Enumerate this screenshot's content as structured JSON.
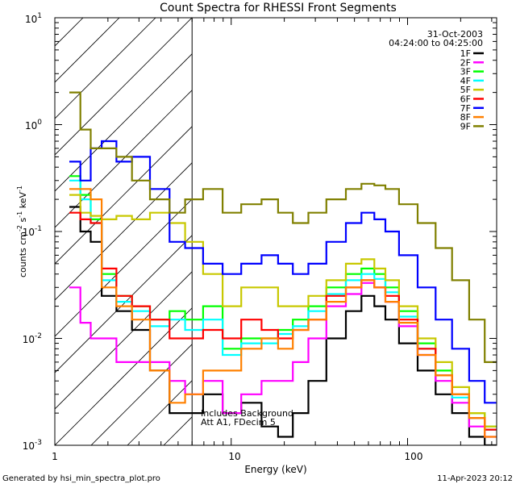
{
  "chart_data": {
    "type": "line",
    "title": "Count Spectra for RHESSI Front Segments",
    "xlabel": "Energy (keV)",
    "ylabel_base": "counts cm",
    "ylabel_sup1": "-2",
    "ylabel_mid": " s",
    "ylabel_sup2": "-1",
    "ylabel_end": " keV",
    "ylabel_sup3": "-1",
    "xscale": "log",
    "yscale": "log",
    "xlim": [
      1,
      320
    ],
    "ylim": [
      0.001,
      10
    ],
    "x_ticks": [
      {
        "value": 1,
        "label": "1"
      },
      {
        "value": 10,
        "label": "10"
      },
      {
        "value": 100,
        "label": "100"
      }
    ],
    "y_ticks": [
      {
        "value": 10,
        "base": "10",
        "exp": "1"
      },
      {
        "value": 1,
        "base": "10",
        "exp": "0"
      },
      {
        "value": 0.1,
        "base": "10",
        "exp": "-1"
      },
      {
        "value": 0.01,
        "base": "10",
        "exp": "-2"
      },
      {
        "value": 0.001,
        "base": "10",
        "exp": "-3"
      }
    ],
    "date": "31-Oct-2003",
    "time_range": "04:24:00 to 04:25:00",
    "hatched_region_upper_keV": 6,
    "annotation_line1": "Includes Background",
    "annotation_line2": "Att A1, FDecim 5",
    "legend_position": "top-right",
    "series": [
      {
        "name": "1F",
        "color": "#000000",
        "x": [
          1.3,
          1.5,
          1.7,
          2,
          2.5,
          3,
          4,
          5,
          6,
          8,
          10,
          13,
          17,
          20,
          25,
          30,
          40,
          50,
          60,
          70,
          80,
          100,
          130,
          160,
          200,
          250,
          300
        ],
        "y": [
          0.17,
          0.1,
          0.08,
          0.025,
          0.018,
          0.012,
          0.005,
          0.002,
          0.002,
          0.003,
          0.002,
          0.0025,
          0.0015,
          0.0012,
          0.002,
          0.004,
          0.01,
          0.018,
          0.025,
          0.02,
          0.015,
          0.009,
          0.005,
          0.003,
          0.002,
          0.0012,
          0.001
        ]
      },
      {
        "name": "2F",
        "color": "#ff00ff",
        "x": [
          1.3,
          1.5,
          1.7,
          2,
          2.5,
          3,
          4,
          5,
          6,
          8,
          10,
          13,
          17,
          20,
          25,
          30,
          40,
          50,
          60,
          70,
          80,
          100,
          130,
          160,
          200,
          250,
          300
        ],
        "y": [
          0.03,
          0.014,
          0.01,
          0.01,
          0.006,
          0.006,
          0.006,
          0.004,
          0.003,
          0.004,
          0.002,
          0.003,
          0.004,
          0.004,
          0.006,
          0.01,
          0.02,
          0.026,
          0.033,
          0.03,
          0.022,
          0.013,
          0.007,
          0.004,
          0.0025,
          0.0015,
          0.0012
        ]
      },
      {
        "name": "3F",
        "color": "#00ff00",
        "x": [
          1.3,
          1.5,
          1.7,
          2,
          2.5,
          3,
          4,
          5,
          6,
          8,
          10,
          13,
          17,
          20,
          25,
          30,
          40,
          50,
          60,
          70,
          80,
          100,
          130,
          160,
          200,
          250,
          300
        ],
        "y": [
          0.33,
          0.22,
          0.13,
          0.04,
          0.025,
          0.02,
          0.015,
          0.018,
          0.015,
          0.02,
          0.008,
          0.01,
          0.01,
          0.012,
          0.015,
          0.02,
          0.03,
          0.04,
          0.045,
          0.04,
          0.03,
          0.018,
          0.009,
          0.005,
          0.003,
          0.002,
          0.0015
        ]
      },
      {
        "name": "4F",
        "color": "#00ffff",
        "x": [
          1.3,
          1.5,
          1.7,
          2,
          2.5,
          3,
          4,
          5,
          6,
          8,
          10,
          13,
          17,
          20,
          25,
          30,
          40,
          50,
          60,
          70,
          80,
          100,
          130,
          160,
          200,
          250,
          300
        ],
        "y": [
          0.3,
          0.2,
          0.12,
          0.035,
          0.022,
          0.018,
          0.013,
          0.015,
          0.012,
          0.015,
          0.007,
          0.009,
          0.009,
          0.011,
          0.013,
          0.018,
          0.026,
          0.035,
          0.04,
          0.036,
          0.027,
          0.016,
          0.008,
          0.0045,
          0.0028,
          0.0018,
          0.0014
        ]
      },
      {
        "name": "5F",
        "color": "#c8c800",
        "x": [
          1.3,
          1.5,
          1.7,
          2,
          2.5,
          3,
          4,
          5,
          6,
          8,
          10,
          13,
          17,
          20,
          25,
          30,
          40,
          50,
          60,
          70,
          80,
          100,
          130,
          160,
          200,
          250,
          300
        ],
        "y": [
          0.22,
          0.15,
          0.14,
          0.13,
          0.14,
          0.13,
          0.15,
          0.12,
          0.08,
          0.04,
          0.02,
          0.03,
          0.03,
          0.02,
          0.02,
          0.025,
          0.035,
          0.05,
          0.055,
          0.045,
          0.035,
          0.02,
          0.01,
          0.006,
          0.0035,
          0.002,
          0.0015
        ]
      },
      {
        "name": "6F",
        "color": "#ff0000",
        "x": [
          1.3,
          1.5,
          1.7,
          2,
          2.5,
          3,
          4,
          5,
          6,
          8,
          10,
          13,
          17,
          20,
          25,
          30,
          40,
          50,
          60,
          70,
          80,
          100,
          130,
          160,
          200,
          250,
          300
        ],
        "y": [
          0.15,
          0.13,
          0.12,
          0.045,
          0.025,
          0.02,
          0.015,
          0.01,
          0.01,
          0.012,
          0.01,
          0.015,
          0.012,
          0.01,
          0.012,
          0.015,
          0.025,
          0.03,
          0.035,
          0.03,
          0.025,
          0.015,
          0.008,
          0.0045,
          0.003,
          0.0018,
          0.0014
        ]
      },
      {
        "name": "7F",
        "color": "#0000ff",
        "x": [
          1.3,
          1.5,
          1.7,
          2,
          2.5,
          3,
          4,
          5,
          6,
          8,
          10,
          13,
          17,
          20,
          25,
          30,
          40,
          50,
          60,
          70,
          80,
          100,
          130,
          160,
          200,
          250,
          300
        ],
        "y": [
          0.45,
          0.3,
          0.6,
          0.7,
          0.45,
          0.5,
          0.25,
          0.08,
          0.07,
          0.05,
          0.04,
          0.05,
          0.06,
          0.05,
          0.04,
          0.05,
          0.08,
          0.12,
          0.15,
          0.13,
          0.1,
          0.06,
          0.03,
          0.015,
          0.008,
          0.004,
          0.0025
        ]
      },
      {
        "name": "8F",
        "color": "#ff8000",
        "x": [
          1.3,
          1.5,
          1.7,
          2,
          2.5,
          3,
          4,
          5,
          6,
          8,
          10,
          13,
          17,
          20,
          25,
          30,
          40,
          50,
          60,
          70,
          80,
          100,
          130,
          160,
          200,
          250,
          300
        ],
        "y": [
          0.25,
          0.25,
          0.2,
          0.03,
          0.02,
          0.015,
          0.005,
          0.0025,
          0.003,
          0.005,
          0.005,
          0.008,
          0.01,
          0.008,
          0.012,
          0.015,
          0.022,
          0.03,
          0.035,
          0.03,
          0.022,
          0.014,
          0.007,
          0.0045,
          0.003,
          0.0018,
          0.0012
        ]
      },
      {
        "name": "9F",
        "color": "#808000",
        "x": [
          1.3,
          1.5,
          1.7,
          2,
          2.5,
          3,
          4,
          5,
          6,
          8,
          10,
          13,
          17,
          20,
          25,
          30,
          40,
          50,
          60,
          70,
          80,
          100,
          130,
          160,
          200,
          250,
          300
        ],
        "y": [
          2,
          0.9,
          0.6,
          0.6,
          0.5,
          0.3,
          0.2,
          0.15,
          0.2,
          0.25,
          0.15,
          0.18,
          0.2,
          0.15,
          0.12,
          0.15,
          0.2,
          0.25,
          0.28,
          0.27,
          0.25,
          0.18,
          0.12,
          0.07,
          0.035,
          0.015,
          0.006
        ]
      }
    ]
  },
  "footer": {
    "generated_by": "Generated by hsi_min_spectra_plot.pro",
    "timestamp": "11-Apr-2023 20:12"
  }
}
